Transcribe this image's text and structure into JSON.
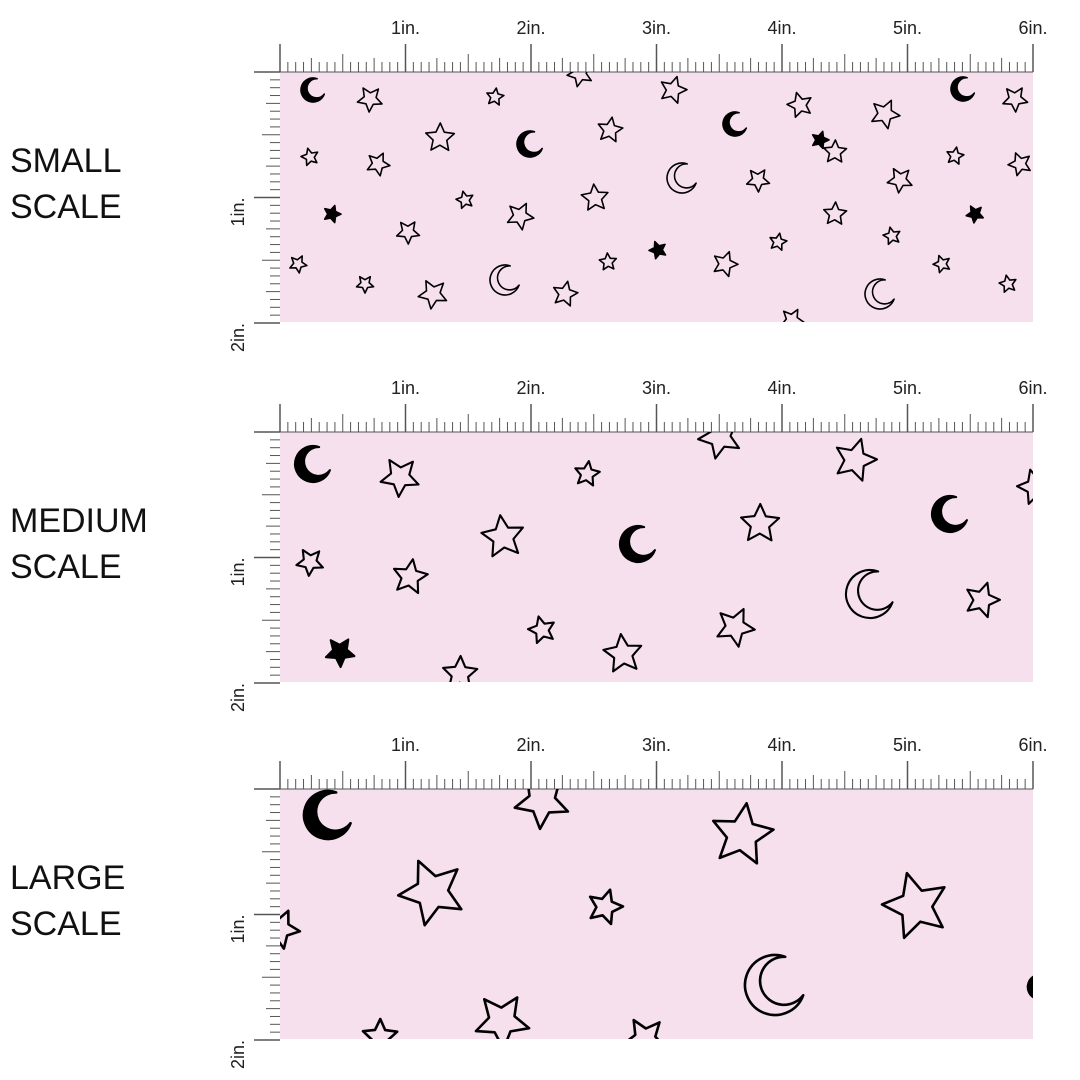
{
  "panels": [
    {
      "label": [
        "SMALL",
        "SCALE"
      ],
      "ruler_x": [
        "1in.",
        "2in.",
        "3in.",
        "4in.",
        "5in.",
        "6in."
      ],
      "ruler_y": [
        "1in.",
        "2in."
      ]
    },
    {
      "label": [
        "MEDIUM",
        "SCALE"
      ],
      "ruler_x": [
        "1in.",
        "2in.",
        "3in.",
        "4in.",
        "5in.",
        "6in."
      ],
      "ruler_y": [
        "1in.",
        "2in."
      ]
    },
    {
      "label": [
        "LARGE",
        "SCALE"
      ],
      "ruler_x": [
        "1in.",
        "2in.",
        "3in.",
        "4in.",
        "5in.",
        "6in."
      ],
      "ruler_y": [
        "1in.",
        "2in."
      ]
    }
  ]
}
